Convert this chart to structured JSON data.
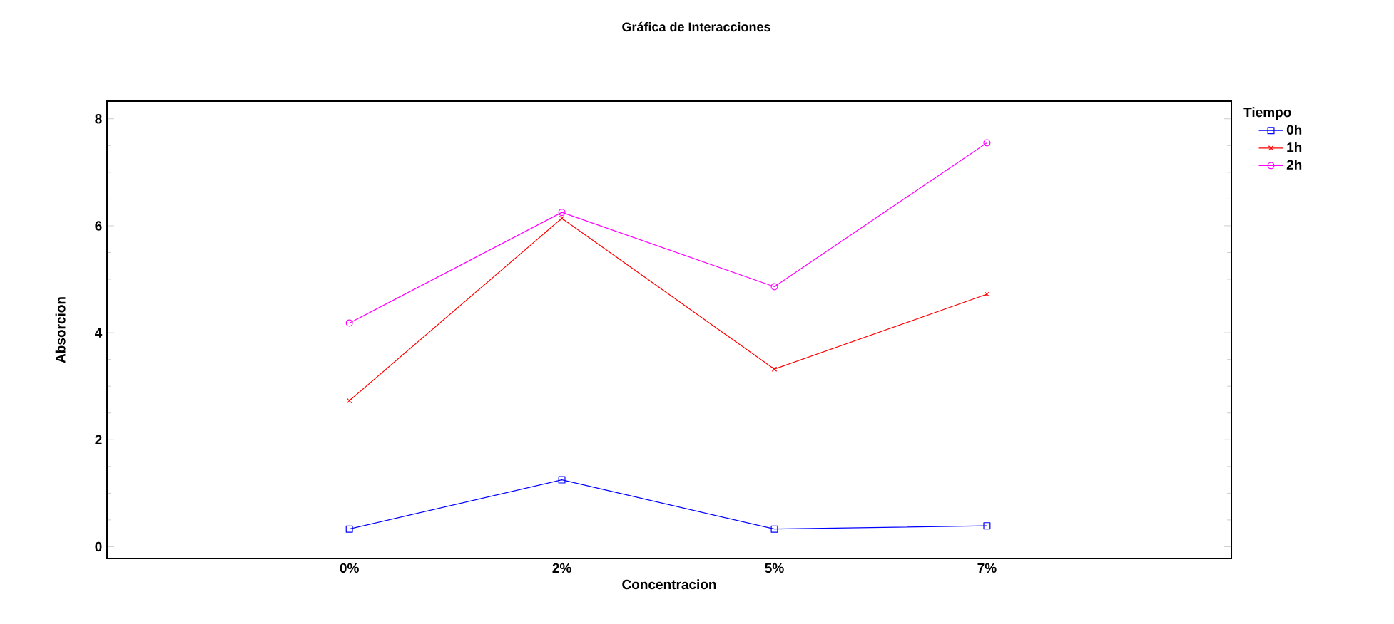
{
  "chart_data": {
    "type": "line",
    "title": "Gráfica de Interacciones",
    "xlabel": "Concentracion",
    "ylabel": "Absorcion",
    "legend_title": "Tiempo",
    "categories": [
      "0%",
      "2%",
      "5%",
      "7%"
    ],
    "ylim": [
      -0.22,
      8.33
    ],
    "yticks": [
      0,
      2,
      4,
      6,
      8
    ],
    "legend": "top right",
    "grid": false,
    "line_style": "solid",
    "series": [
      {
        "name": "0h",
        "color": "#0000ff",
        "marker": "square",
        "values": [
          0.33,
          1.25,
          0.33,
          0.39
        ]
      },
      {
        "name": "1h",
        "color": "#ff0000",
        "marker": "cross",
        "values": [
          2.73,
          6.14,
          3.32,
          4.72
        ]
      },
      {
        "name": "2h",
        "color": "#ff00ff",
        "marker": "circle",
        "values": [
          4.18,
          6.25,
          4.86,
          7.55
        ]
      }
    ]
  }
}
